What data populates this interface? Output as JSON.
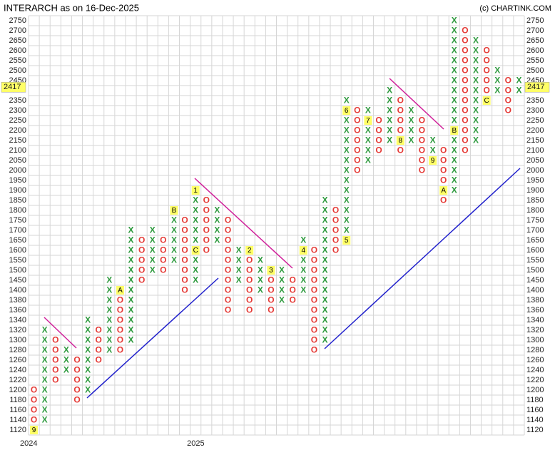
{
  "chart_data": {
    "type": "pnf",
    "title": "INTERARCH as on 16-Dec-2025",
    "source": "(c) CHARTINK.COM",
    "x_color": "#2e9a3e",
    "o_color": "#e53935",
    "yticks": [
      1120,
      1140,
      1160,
      1180,
      1200,
      1220,
      1240,
      1260,
      1280,
      1300,
      1320,
      1340,
      1360,
      1380,
      1400,
      1450,
      1500,
      1550,
      1600,
      1650,
      1700,
      1750,
      1800,
      1850,
      1900,
      1950,
      2000,
      2050,
      2100,
      2150,
      2200,
      2250,
      2300,
      2350,
      {
        "value": 2400,
        "label": null
      },
      2450,
      2500,
      2550,
      2600,
      2650,
      2700,
      2750
    ],
    "last_price": 2417,
    "columns": [
      {
        "box": "O",
        "from": 1200,
        "to": 1120,
        "markers": [
          {
            "level": 1120,
            "label": "9"
          }
        ],
        "year": "2024"
      },
      {
        "box": "X",
        "from": 1140,
        "to": 1320
      },
      {
        "box": "O",
        "from": 1300,
        "to": 1220
      },
      {
        "box": "X",
        "from": 1240,
        "to": 1280
      },
      {
        "box": "O",
        "from": 1260,
        "to": 1180
      },
      {
        "box": "X",
        "from": 1200,
        "to": 1340
      },
      {
        "box": "O",
        "from": 1320,
        "to": 1260
      },
      {
        "box": "X",
        "from": 1280,
        "to": 1450
      },
      {
        "box": "O",
        "from": 1400,
        "to": 1280,
        "markers": [
          {
            "level": 1400,
            "label": "A"
          }
        ]
      },
      {
        "box": "X",
        "from": 1300,
        "to": 1700
      },
      {
        "box": "O",
        "from": 1650,
        "to": 1450
      },
      {
        "box": "X",
        "from": 1500,
        "to": 1700
      },
      {
        "box": "O",
        "from": 1650,
        "to": 1500
      },
      {
        "box": "X",
        "from": 1550,
        "to": 1800,
        "markers": [
          {
            "level": 1800,
            "label": "B"
          }
        ]
      },
      {
        "box": "O",
        "from": 1750,
        "to": 1400
      },
      {
        "box": "X",
        "from": 1450,
        "to": 1900,
        "markers": [
          {
            "level": 1900,
            "label": "1"
          },
          {
            "level": 1600,
            "label": "C"
          }
        ],
        "year": "2025"
      },
      {
        "box": "O",
        "from": 1850,
        "to": 1600
      },
      {
        "box": "X",
        "from": 1650,
        "to": 1800
      },
      {
        "box": "O",
        "from": 1750,
        "to": 1360
      },
      {
        "box": "X",
        "from": 1450,
        "to": 1600
      },
      {
        "box": "O",
        "from": 1600,
        "to": 1360,
        "markers": [
          {
            "level": 1600,
            "label": "2"
          }
        ]
      },
      {
        "box": "X",
        "from": 1400,
        "to": 1550
      },
      {
        "box": "O",
        "from": 1500,
        "to": 1360,
        "markers": [
          {
            "level": 1500,
            "label": "3"
          }
        ]
      },
      {
        "box": "X",
        "from": 1380,
        "to": 1500
      },
      {
        "box": "O",
        "from": 1450,
        "to": 1380
      },
      {
        "box": "X",
        "from": 1400,
        "to": 1650,
        "markers": [
          {
            "level": 1600,
            "label": "4"
          }
        ]
      },
      {
        "box": "O",
        "from": 1600,
        "to": 1280
      },
      {
        "box": "X",
        "from": 1300,
        "to": 1850
      },
      {
        "box": "O",
        "from": 1800,
        "to": 1600
      },
      {
        "box": "X",
        "from": 1650,
        "to": 2350,
        "markers": [
          {
            "level": 1650,
            "label": "5"
          },
          {
            "level": 2300,
            "label": "6"
          }
        ]
      },
      {
        "box": "O",
        "from": 2300,
        "to": 2000
      },
      {
        "box": "X",
        "from": 2050,
        "to": 2300,
        "markers": [
          {
            "level": 2250,
            "label": "7"
          }
        ]
      },
      {
        "box": "O",
        "from": 2250,
        "to": 2100
      },
      {
        "box": "X",
        "from": 2150,
        "to": 2400
      },
      {
        "box": "O",
        "from": 2350,
        "to": 2100,
        "markers": [
          {
            "level": 2150,
            "label": "8"
          }
        ]
      },
      {
        "box": "X",
        "from": 2150,
        "to": 2300
      },
      {
        "box": "O",
        "from": 2250,
        "to": 2000
      },
      {
        "box": "X",
        "from": 2050,
        "to": 2150,
        "markers": [
          {
            "level": 2050,
            "label": "9"
          }
        ]
      },
      {
        "box": "O",
        "from": 2100,
        "to": 1850,
        "markers": [
          {
            "level": 1900,
            "label": "A"
          }
        ]
      },
      {
        "box": "X",
        "from": 1900,
        "to": 2750,
        "markers": [
          {
            "level": 2200,
            "label": "B"
          }
        ]
      },
      {
        "box": "O",
        "from": 2700,
        "to": 2100
      },
      {
        "box": "X",
        "from": 2150,
        "to": 2650
      },
      {
        "box": "O",
        "from": 2600,
        "to": 2350,
        "markers": [
          {
            "level": 2350,
            "label": "C"
          }
        ]
      },
      {
        "box": "X",
        "from": 2400,
        "to": 2500
      },
      {
        "box": "O",
        "from": 2450,
        "to": 2300
      },
      {
        "box": "X",
        "from": 2400,
        "to": 2450
      }
    ]
  }
}
